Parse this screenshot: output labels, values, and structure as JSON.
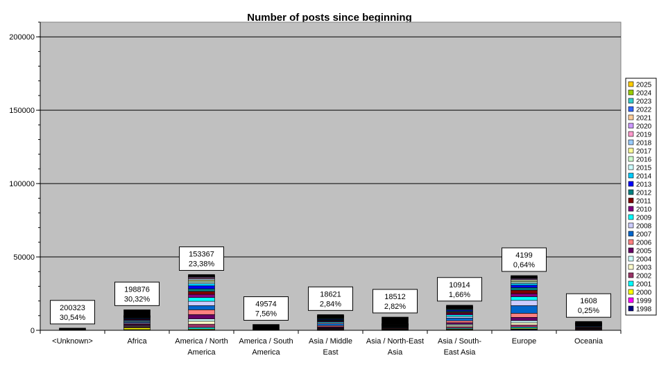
{
  "chart_data": {
    "type": "bar",
    "stacked": true,
    "title": "Number of posts since beginning",
    "xlabel": "",
    "ylabel": "",
    "ylim": [
      0,
      210000
    ],
    "yticks": [
      0,
      50000,
      100000,
      150000,
      200000
    ],
    "grid": true,
    "legend_position": "right",
    "categories": [
      "<Unknown>",
      "Africa",
      "America / North America",
      "America / South America",
      "Asia / Middle East",
      "Asia / North-East Asia",
      "Asia / South-East Asia",
      "Europe",
      "Oceania"
    ],
    "category_label_lines": [
      [
        "<Unknown>"
      ],
      [
        "Africa"
      ],
      [
        "America / North",
        "America"
      ],
      [
        "America / South",
        "America"
      ],
      [
        "Asia / Middle",
        "East"
      ],
      [
        "Asia / North-East",
        "Asia"
      ],
      [
        "Asia / South-",
        "East Asia"
      ],
      [
        "Europe"
      ],
      [
        "Oceania"
      ]
    ],
    "annotations": [
      {
        "count": "200323",
        "percent": "30,54%"
      },
      {
        "count": "198876",
        "percent": "30,32%"
      },
      {
        "count": "153367",
        "percent": "23,38%"
      },
      {
        "count": "49574",
        "percent": "7,56%"
      },
      {
        "count": "18621",
        "percent": "2,84%"
      },
      {
        "count": "18512",
        "percent": "2,82%"
      },
      {
        "count": "10914",
        "percent": "1,66%"
      },
      {
        "count": "4199",
        "percent": "0,64%"
      },
      {
        "count": "1608",
        "percent": "0,25%"
      }
    ],
    "series": [
      {
        "name": "1998",
        "color": "#000080",
        "values": [
          0,
          300,
          200,
          0,
          100,
          0,
          300,
          500,
          100
        ]
      },
      {
        "name": "1999",
        "color": "#ff00ff",
        "values": [
          0,
          200,
          200,
          0,
          100,
          0,
          100,
          300,
          100
        ]
      },
      {
        "name": "2000",
        "color": "#ffff00",
        "values": [
          0,
          1200,
          500,
          0,
          200,
          100,
          400,
          600,
          200
        ]
      },
      {
        "name": "2001",
        "color": "#00ffff",
        "values": [
          0,
          300,
          1000,
          0,
          300,
          100,
          600,
          800,
          300
        ]
      },
      {
        "name": "2002",
        "color": "#993366",
        "values": [
          0,
          600,
          2300,
          0,
          500,
          300,
          1000,
          1500,
          400
        ]
      },
      {
        "name": "2003",
        "color": "#ffffcc",
        "values": [
          0,
          400,
          2000,
          0,
          300,
          200,
          900,
          1500,
          300
        ]
      },
      {
        "name": "2004",
        "color": "#ccffff",
        "values": [
          0,
          400,
          1500,
          0,
          300,
          200,
          800,
          1400,
          200
        ]
      },
      {
        "name": "2005",
        "color": "#660066",
        "values": [
          0,
          700,
          3000,
          0,
          600,
          300,
          1100,
          2200,
          300
        ]
      },
      {
        "name": "2006",
        "color": "#ff8080",
        "values": [
          0,
          600,
          3300,
          0,
          800,
          400,
          1300,
          2800,
          400
        ]
      },
      {
        "name": "2007",
        "color": "#0066cc",
        "values": [
          0,
          700,
          2800,
          0,
          1200,
          300,
          1800,
          5200,
          400
        ]
      },
      {
        "name": "2008",
        "color": "#ccccff",
        "values": [
          0,
          600,
          3000,
          0,
          700,
          300,
          1100,
          3600,
          300
        ]
      },
      {
        "name": "2009",
        "color": "#00ffff",
        "values": [
          0,
          500,
          2500,
          0,
          600,
          300,
          1100,
          2500,
          200
        ]
      },
      {
        "name": "2010",
        "color": "#800080",
        "values": [
          0,
          500,
          2200,
          0,
          500,
          300,
          900,
          2100,
          200
        ]
      },
      {
        "name": "2011",
        "color": "#800000",
        "values": [
          0,
          400,
          2000,
          0,
          400,
          200,
          900,
          2300,
          200
        ]
      },
      {
        "name": "2012",
        "color": "#008080",
        "values": [
          0,
          400,
          1800,
          0,
          400,
          200,
          700,
          1800,
          200
        ]
      },
      {
        "name": "2013",
        "color": "#0000ff",
        "values": [
          0,
          400,
          2000,
          0,
          400,
          200,
          700,
          1600,
          200
        ]
      },
      {
        "name": "2014",
        "color": "#00ccff",
        "values": [
          0,
          300,
          1500,
          0,
          400,
          200,
          500,
          1200,
          200
        ]
      },
      {
        "name": "2015",
        "color": "#ccffff",
        "values": [
          0,
          200,
          1000,
          0,
          300,
          100,
          300,
          800,
          100
        ]
      },
      {
        "name": "2016",
        "color": "#ccffcc",
        "values": [
          0,
          200,
          800,
          0,
          300,
          100,
          300,
          700,
          100
        ]
      },
      {
        "name": "2017",
        "color": "#ffff99",
        "values": [
          0,
          200,
          800,
          0,
          300,
          100,
          300,
          700,
          100
        ]
      },
      {
        "name": "2018",
        "color": "#99ccff",
        "values": [
          0,
          200,
          700,
          0,
          200,
          100,
          200,
          500,
          100
        ]
      },
      {
        "name": "2019",
        "color": "#ff99cc",
        "values": [
          0,
          200,
          600,
          0,
          200,
          100,
          200,
          500,
          100
        ]
      },
      {
        "name": "2020",
        "color": "#cc99ff",
        "values": [
          0,
          100,
          500,
          0,
          200,
          100,
          200,
          400,
          100
        ]
      },
      {
        "name": "2021",
        "color": "#ffcc99",
        "values": [
          0,
          100,
          300,
          0,
          100,
          100,
          100,
          300,
          50
        ]
      },
      {
        "name": "2022",
        "color": "#3366ff",
        "values": [
          0,
          100,
          200,
          0,
          100,
          50,
          100,
          200,
          50
        ]
      },
      {
        "name": "2023",
        "color": "#33cccc",
        "values": [
          0,
          100,
          100,
          0,
          100,
          50,
          100,
          100,
          50
        ]
      },
      {
        "name": "2024",
        "color": "#99cc00",
        "values": [
          0,
          50,
          100,
          0,
          50,
          50,
          50,
          100,
          50
        ]
      },
      {
        "name": "2025",
        "color": "#ffcc00",
        "values": [
          0,
          50,
          100,
          0,
          50,
          50,
          50,
          100,
          50
        ]
      },
      {
        "name": "",
        "color": "#000000",
        "values": [
          1500,
          4000,
          1000,
          4000,
          1000,
          4500,
          1000,
          1000,
          1000
        ]
      }
    ]
  }
}
